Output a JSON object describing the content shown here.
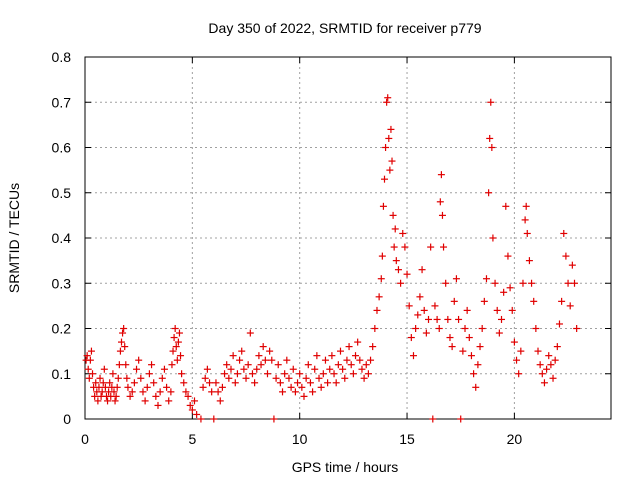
{
  "chart_data": {
    "type": "scatter",
    "title": "Day 350 of 2022, SRMTID for receiver p779",
    "xlabel": "GPS time / hours",
    "ylabel": "SRMTID / TECUs",
    "xlim": [
      0,
      24.5
    ],
    "ylim": [
      0,
      0.8
    ],
    "xticks": [
      0,
      5,
      10,
      15,
      20
    ],
    "yticks": [
      0,
      0.1,
      0.2,
      0.3,
      0.4,
      0.5,
      0.6,
      0.7,
      0.8
    ],
    "xtick_labels": [
      "0",
      "5",
      "10",
      "15",
      "20"
    ],
    "ytick_labels": [
      "0",
      "0.1",
      "0.2",
      "0.3",
      "0.4",
      "0.5",
      "0.6",
      "0.7",
      "0.8"
    ],
    "grid": true,
    "marker": "+",
    "color": "#e00000",
    "series": [
      {
        "name": "SRMTID",
        "points": [
          [
            0.05,
            0.13
          ],
          [
            0.1,
            0.14
          ],
          [
            0.15,
            0.11
          ],
          [
            0.2,
            0.09
          ],
          [
            0.25,
            0.13
          ],
          [
            0.3,
            0.15
          ],
          [
            0.35,
            0.1
          ],
          [
            0.4,
            0.07
          ],
          [
            0.45,
            0.05
          ],
          [
            0.5,
            0.08
          ],
          [
            0.55,
            0.06
          ],
          [
            0.6,
            0.04
          ],
          [
            0.65,
            0.07
          ],
          [
            0.7,
            0.09
          ],
          [
            0.75,
            0.05
          ],
          [
            0.8,
            0.06
          ],
          [
            0.85,
            0.08
          ],
          [
            0.9,
            0.11
          ],
          [
            0.95,
            0.07
          ],
          [
            1.0,
            0.05
          ],
          [
            1.05,
            0.04
          ],
          [
            1.1,
            0.06
          ],
          [
            1.15,
            0.08
          ],
          [
            1.2,
            0.05
          ],
          [
            1.25,
            0.07
          ],
          [
            1.3,
            0.1
          ],
          [
            1.35,
            0.06
          ],
          [
            1.4,
            0.04
          ],
          [
            1.45,
            0.05
          ],
          [
            1.5,
            0.07
          ],
          [
            1.55,
            0.09
          ],
          [
            1.6,
            0.12
          ],
          [
            1.65,
            0.15
          ],
          [
            1.7,
            0.17
          ],
          [
            1.75,
            0.19
          ],
          [
            1.8,
            0.2
          ],
          [
            1.85,
            0.16
          ],
          [
            1.9,
            0.12
          ],
          [
            1.95,
            0.09
          ],
          [
            2.0,
            0.07
          ],
          [
            2.1,
            0.05
          ],
          [
            2.2,
            0.06
          ],
          [
            2.3,
            0.08
          ],
          [
            2.4,
            0.11
          ],
          [
            2.5,
            0.13
          ],
          [
            2.6,
            0.09
          ],
          [
            2.7,
            0.06
          ],
          [
            2.8,
            0.04
          ],
          [
            2.9,
            0.07
          ],
          [
            3.0,
            0.1
          ],
          [
            3.1,
            0.12
          ],
          [
            3.2,
            0.08
          ],
          [
            3.3,
            0.05
          ],
          [
            3.4,
            0.03
          ],
          [
            3.5,
            0.06
          ],
          [
            3.6,
            0.09
          ],
          [
            3.7,
            0.11
          ],
          [
            3.8,
            0.07
          ],
          [
            3.9,
            0.04
          ],
          [
            4.0,
            0.06
          ],
          [
            4.05,
            0.12
          ],
          [
            4.1,
            0.15
          ],
          [
            4.15,
            0.18
          ],
          [
            4.2,
            0.2
          ],
          [
            4.25,
            0.16
          ],
          [
            4.3,
            0.13
          ],
          [
            4.35,
            0.17
          ],
          [
            4.4,
            0.19
          ],
          [
            4.45,
            0.14
          ],
          [
            4.5,
            0.1
          ],
          [
            4.6,
            0.08
          ],
          [
            4.7,
            0.06
          ],
          [
            4.8,
            0.05
          ],
          [
            4.9,
            0.03
          ],
          [
            5.0,
            0.02
          ],
          [
            5.1,
            0.04
          ],
          [
            5.2,
            0.01
          ],
          [
            5.4,
            0.0
          ],
          [
            5.5,
            0.07
          ],
          [
            5.6,
            0.09
          ],
          [
            5.7,
            0.11
          ],
          [
            5.8,
            0.08
          ],
          [
            5.9,
            0.06
          ],
          [
            6.0,
            0.0
          ],
          [
            6.1,
            0.08
          ],
          [
            6.2,
            0.06
          ],
          [
            6.3,
            0.04
          ],
          [
            6.4,
            0.07
          ],
          [
            6.5,
            0.1
          ],
          [
            6.6,
            0.12
          ],
          [
            6.7,
            0.09
          ],
          [
            6.8,
            0.11
          ],
          [
            6.9,
            0.14
          ],
          [
            7.0,
            0.08
          ],
          [
            7.1,
            0.1
          ],
          [
            7.2,
            0.13
          ],
          [
            7.3,
            0.15
          ],
          [
            7.4,
            0.11
          ],
          [
            7.5,
            0.09
          ],
          [
            7.6,
            0.12
          ],
          [
            7.7,
            0.19
          ],
          [
            7.8,
            0.1
          ],
          [
            7.9,
            0.08
          ],
          [
            8.0,
            0.11
          ],
          [
            8.1,
            0.14
          ],
          [
            8.2,
            0.12
          ],
          [
            8.3,
            0.16
          ],
          [
            8.4,
            0.13
          ],
          [
            8.5,
            0.1
          ],
          [
            8.6,
            0.15
          ],
          [
            8.7,
            0.13
          ],
          [
            8.8,
            0.0
          ],
          [
            8.9,
            0.09
          ],
          [
            9.0,
            0.12
          ],
          [
            9.1,
            0.08
          ],
          [
            9.2,
            0.06
          ],
          [
            9.3,
            0.1
          ],
          [
            9.4,
            0.13
          ],
          [
            9.5,
            0.09
          ],
          [
            9.6,
            0.07
          ],
          [
            9.7,
            0.11
          ],
          [
            9.8,
            0.06
          ],
          [
            9.9,
            0.08
          ],
          [
            10.0,
            0.1
          ],
          [
            10.1,
            0.07
          ],
          [
            10.2,
            0.05
          ],
          [
            10.3,
            0.09
          ],
          [
            10.4,
            0.12
          ],
          [
            10.5,
            0.08
          ],
          [
            10.6,
            0.06
          ],
          [
            10.7,
            0.11
          ],
          [
            10.8,
            0.14
          ],
          [
            10.9,
            0.09
          ],
          [
            11.0,
            0.07
          ],
          [
            11.1,
            0.1
          ],
          [
            11.2,
            0.13
          ],
          [
            11.3,
            0.08
          ],
          [
            11.4,
            0.11
          ],
          [
            11.5,
            0.14
          ],
          [
            11.6,
            0.1
          ],
          [
            11.7,
            0.08
          ],
          [
            11.8,
            0.12
          ],
          [
            11.9,
            0.15
          ],
          [
            12.0,
            0.11
          ],
          [
            12.1,
            0.09
          ],
          [
            12.2,
            0.13
          ],
          [
            12.3,
            0.16
          ],
          [
            12.4,
            0.12
          ],
          [
            12.5,
            0.1
          ],
          [
            12.6,
            0.14
          ],
          [
            12.7,
            0.17
          ],
          [
            12.8,
            0.13
          ],
          [
            12.9,
            0.11
          ],
          [
            13.0,
            0.09
          ],
          [
            13.1,
            0.12
          ],
          [
            13.2,
            0.1
          ],
          [
            13.3,
            0.13
          ],
          [
            13.4,
            0.16
          ],
          [
            13.5,
            0.2
          ],
          [
            13.6,
            0.24
          ],
          [
            13.7,
            0.27
          ],
          [
            13.8,
            0.31
          ],
          [
            13.85,
            0.36
          ],
          [
            13.9,
            0.47
          ],
          [
            13.95,
            0.53
          ],
          [
            14.0,
            0.6
          ],
          [
            14.05,
            0.7
          ],
          [
            14.1,
            0.71
          ],
          [
            14.15,
            0.62
          ],
          [
            14.2,
            0.55
          ],
          [
            14.25,
            0.64
          ],
          [
            14.3,
            0.57
          ],
          [
            14.35,
            0.45
          ],
          [
            14.4,
            0.38
          ],
          [
            14.45,
            0.42
          ],
          [
            14.5,
            0.35
          ],
          [
            14.6,
            0.33
          ],
          [
            14.7,
            0.3
          ],
          [
            14.8,
            0.41
          ],
          [
            14.9,
            0.38
          ],
          [
            15.0,
            0.32
          ],
          [
            15.1,
            0.25
          ],
          [
            15.2,
            0.18
          ],
          [
            15.3,
            0.14
          ],
          [
            15.4,
            0.2
          ],
          [
            15.5,
            0.23
          ],
          [
            15.6,
            0.27
          ],
          [
            15.7,
            0.33
          ],
          [
            15.8,
            0.24
          ],
          [
            15.9,
            0.19
          ],
          [
            16.0,
            0.22
          ],
          [
            16.1,
            0.38
          ],
          [
            16.2,
            0.0
          ],
          [
            16.3,
            0.25
          ],
          [
            16.4,
            0.22
          ],
          [
            16.5,
            0.2
          ],
          [
            16.55,
            0.48
          ],
          [
            16.6,
            0.54
          ],
          [
            16.65,
            0.45
          ],
          [
            16.7,
            0.38
          ],
          [
            16.8,
            0.3
          ],
          [
            16.9,
            0.22
          ],
          [
            17.0,
            0.18
          ],
          [
            17.1,
            0.16
          ],
          [
            17.2,
            0.26
          ],
          [
            17.3,
            0.31
          ],
          [
            17.4,
            0.22
          ],
          [
            17.5,
            0.0
          ],
          [
            17.6,
            0.15
          ],
          [
            17.7,
            0.2
          ],
          [
            17.8,
            0.24
          ],
          [
            17.9,
            0.18
          ],
          [
            18.0,
            0.14
          ],
          [
            18.1,
            0.1
          ],
          [
            18.2,
            0.07
          ],
          [
            18.3,
            0.12
          ],
          [
            18.4,
            0.16
          ],
          [
            18.5,
            0.2
          ],
          [
            18.6,
            0.26
          ],
          [
            18.7,
            0.31
          ],
          [
            18.8,
            0.5
          ],
          [
            18.85,
            0.62
          ],
          [
            18.9,
            0.7
          ],
          [
            18.95,
            0.6
          ],
          [
            19.0,
            0.4
          ],
          [
            19.1,
            0.3
          ],
          [
            19.2,
            0.24
          ],
          [
            19.3,
            0.19
          ],
          [
            19.4,
            0.22
          ],
          [
            19.5,
            0.28
          ],
          [
            19.6,
            0.47
          ],
          [
            19.7,
            0.36
          ],
          [
            19.8,
            0.29
          ],
          [
            19.9,
            0.24
          ],
          [
            20.0,
            0.17
          ],
          [
            20.1,
            0.13
          ],
          [
            20.2,
            0.1
          ],
          [
            20.3,
            0.15
          ],
          [
            20.4,
            0.3
          ],
          [
            20.5,
            0.44
          ],
          [
            20.55,
            0.47
          ],
          [
            20.6,
            0.41
          ],
          [
            20.7,
            0.35
          ],
          [
            20.8,
            0.3
          ],
          [
            20.9,
            0.26
          ],
          [
            21.0,
            0.2
          ],
          [
            21.1,
            0.15
          ],
          [
            21.2,
            0.12
          ],
          [
            21.3,
            0.1
          ],
          [
            21.4,
            0.08
          ],
          [
            21.5,
            0.11
          ],
          [
            21.6,
            0.14
          ],
          [
            21.7,
            0.12
          ],
          [
            21.8,
            0.09
          ],
          [
            21.9,
            0.13
          ],
          [
            22.0,
            0.16
          ],
          [
            22.1,
            0.21
          ],
          [
            22.2,
            0.26
          ],
          [
            22.3,
            0.41
          ],
          [
            22.4,
            0.36
          ],
          [
            22.5,
            0.3
          ],
          [
            22.6,
            0.25
          ],
          [
            22.7,
            0.34
          ],
          [
            22.8,
            0.3
          ],
          [
            22.9,
            0.2
          ]
        ]
      }
    ]
  }
}
